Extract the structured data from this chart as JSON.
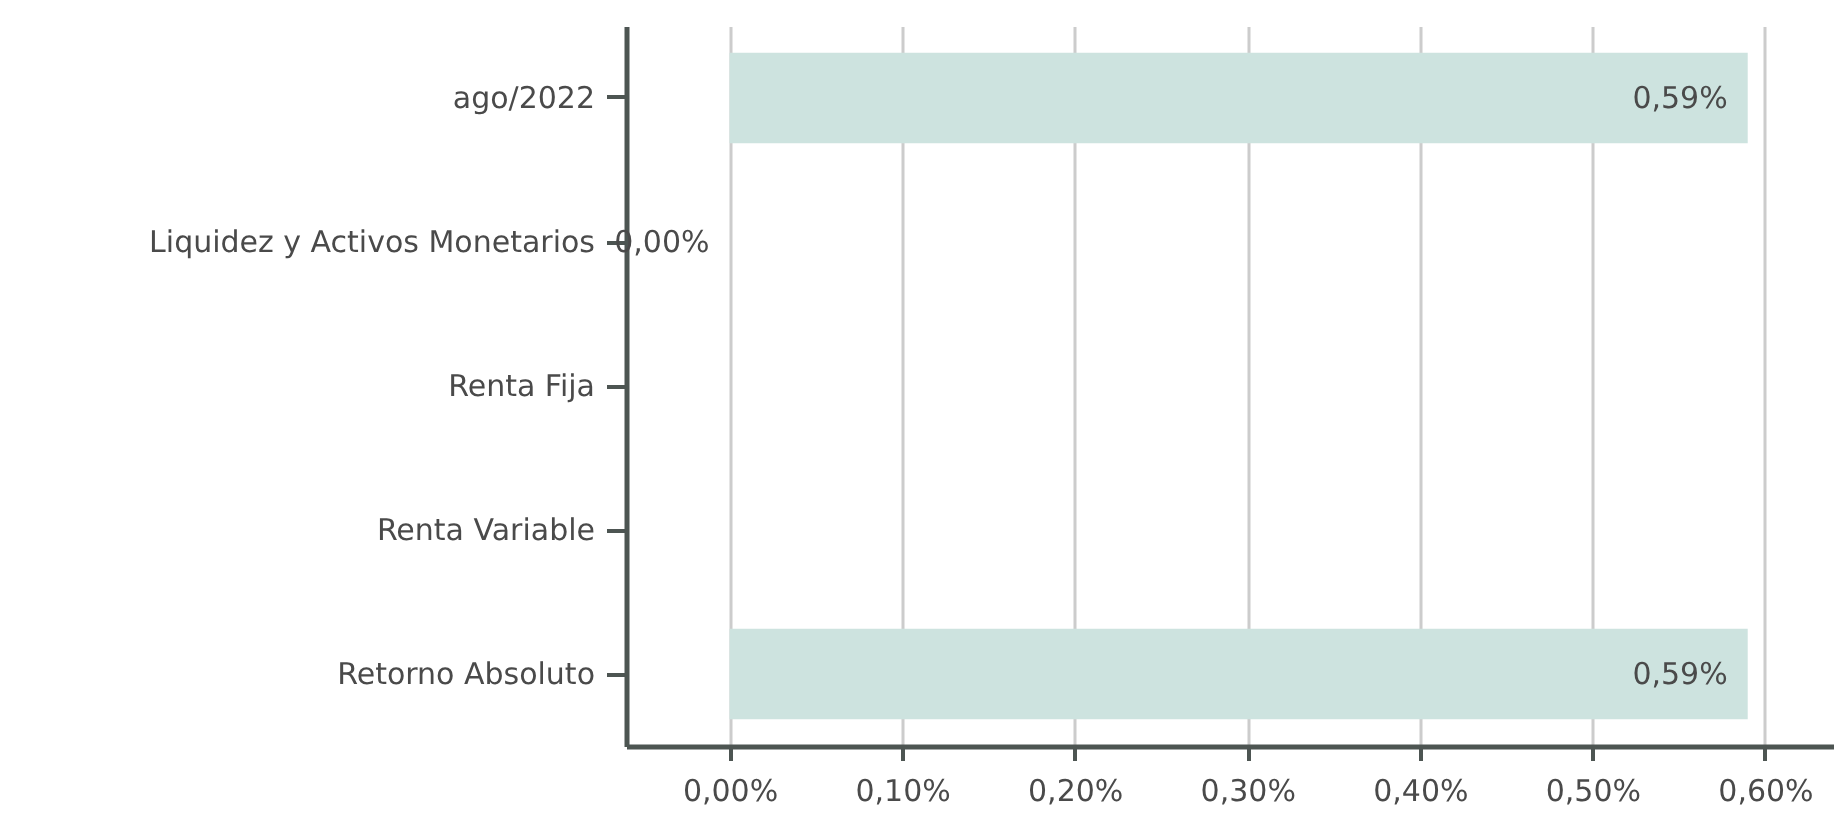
{
  "chart_data": {
    "type": "bar",
    "orientation": "horizontal",
    "categories": [
      "ago/2022",
      "Liquidez y Activos Monetarios",
      "Renta Fija",
      "Renta Variable",
      "Retorno Absoluto"
    ],
    "values": [
      0.59,
      0,
      0,
      0,
      0.59
    ],
    "value_labels": [
      "0,59%",
      "0,00%",
      null,
      null,
      "0,59%"
    ],
    "color": "#cde3df",
    "xlim": [
      -0.06,
      0.64
    ],
    "xticks": [
      {
        "value": 0,
        "label": "0,00%"
      },
      {
        "value": 0.1,
        "label": "0,10%"
      },
      {
        "value": 0.2,
        "label": "0,20%"
      },
      {
        "value": 0.3,
        "label": "0,30%"
      },
      {
        "value": 0.4,
        "label": "0,40%"
      },
      {
        "value": 0.5,
        "label": "0,50%"
      },
      {
        "value": 0.6,
        "label": "0,60%"
      }
    ],
    "grid": "x"
  }
}
